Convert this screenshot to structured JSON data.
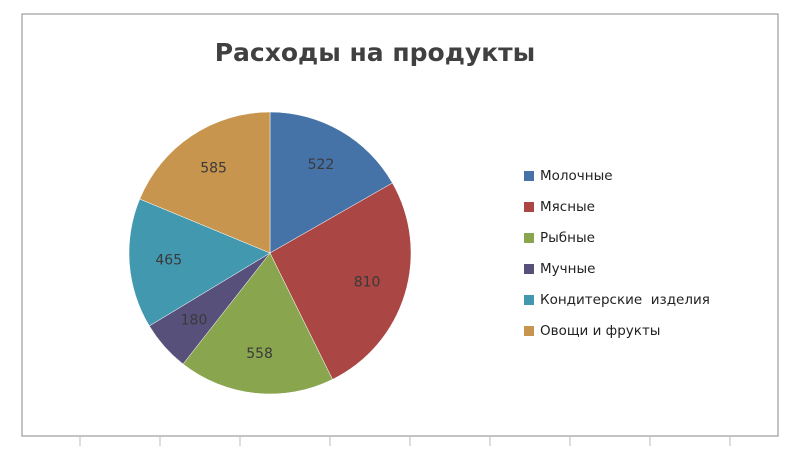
{
  "chart_data": {
    "type": "pie",
    "title": "Расходы на продукты",
    "categories": [
      "Молочные",
      "Мясные",
      "Рыбные",
      "Мучные",
      "Кондитерские  изделия",
      "Овощи и фрукты"
    ],
    "values": [
      522,
      810,
      558,
      180,
      465,
      585
    ],
    "colors": [
      "#4572a7",
      "#aa4643",
      "#89a54e",
      "#57507a",
      "#4198af",
      "#c8954e"
    ],
    "legend": "right"
  }
}
